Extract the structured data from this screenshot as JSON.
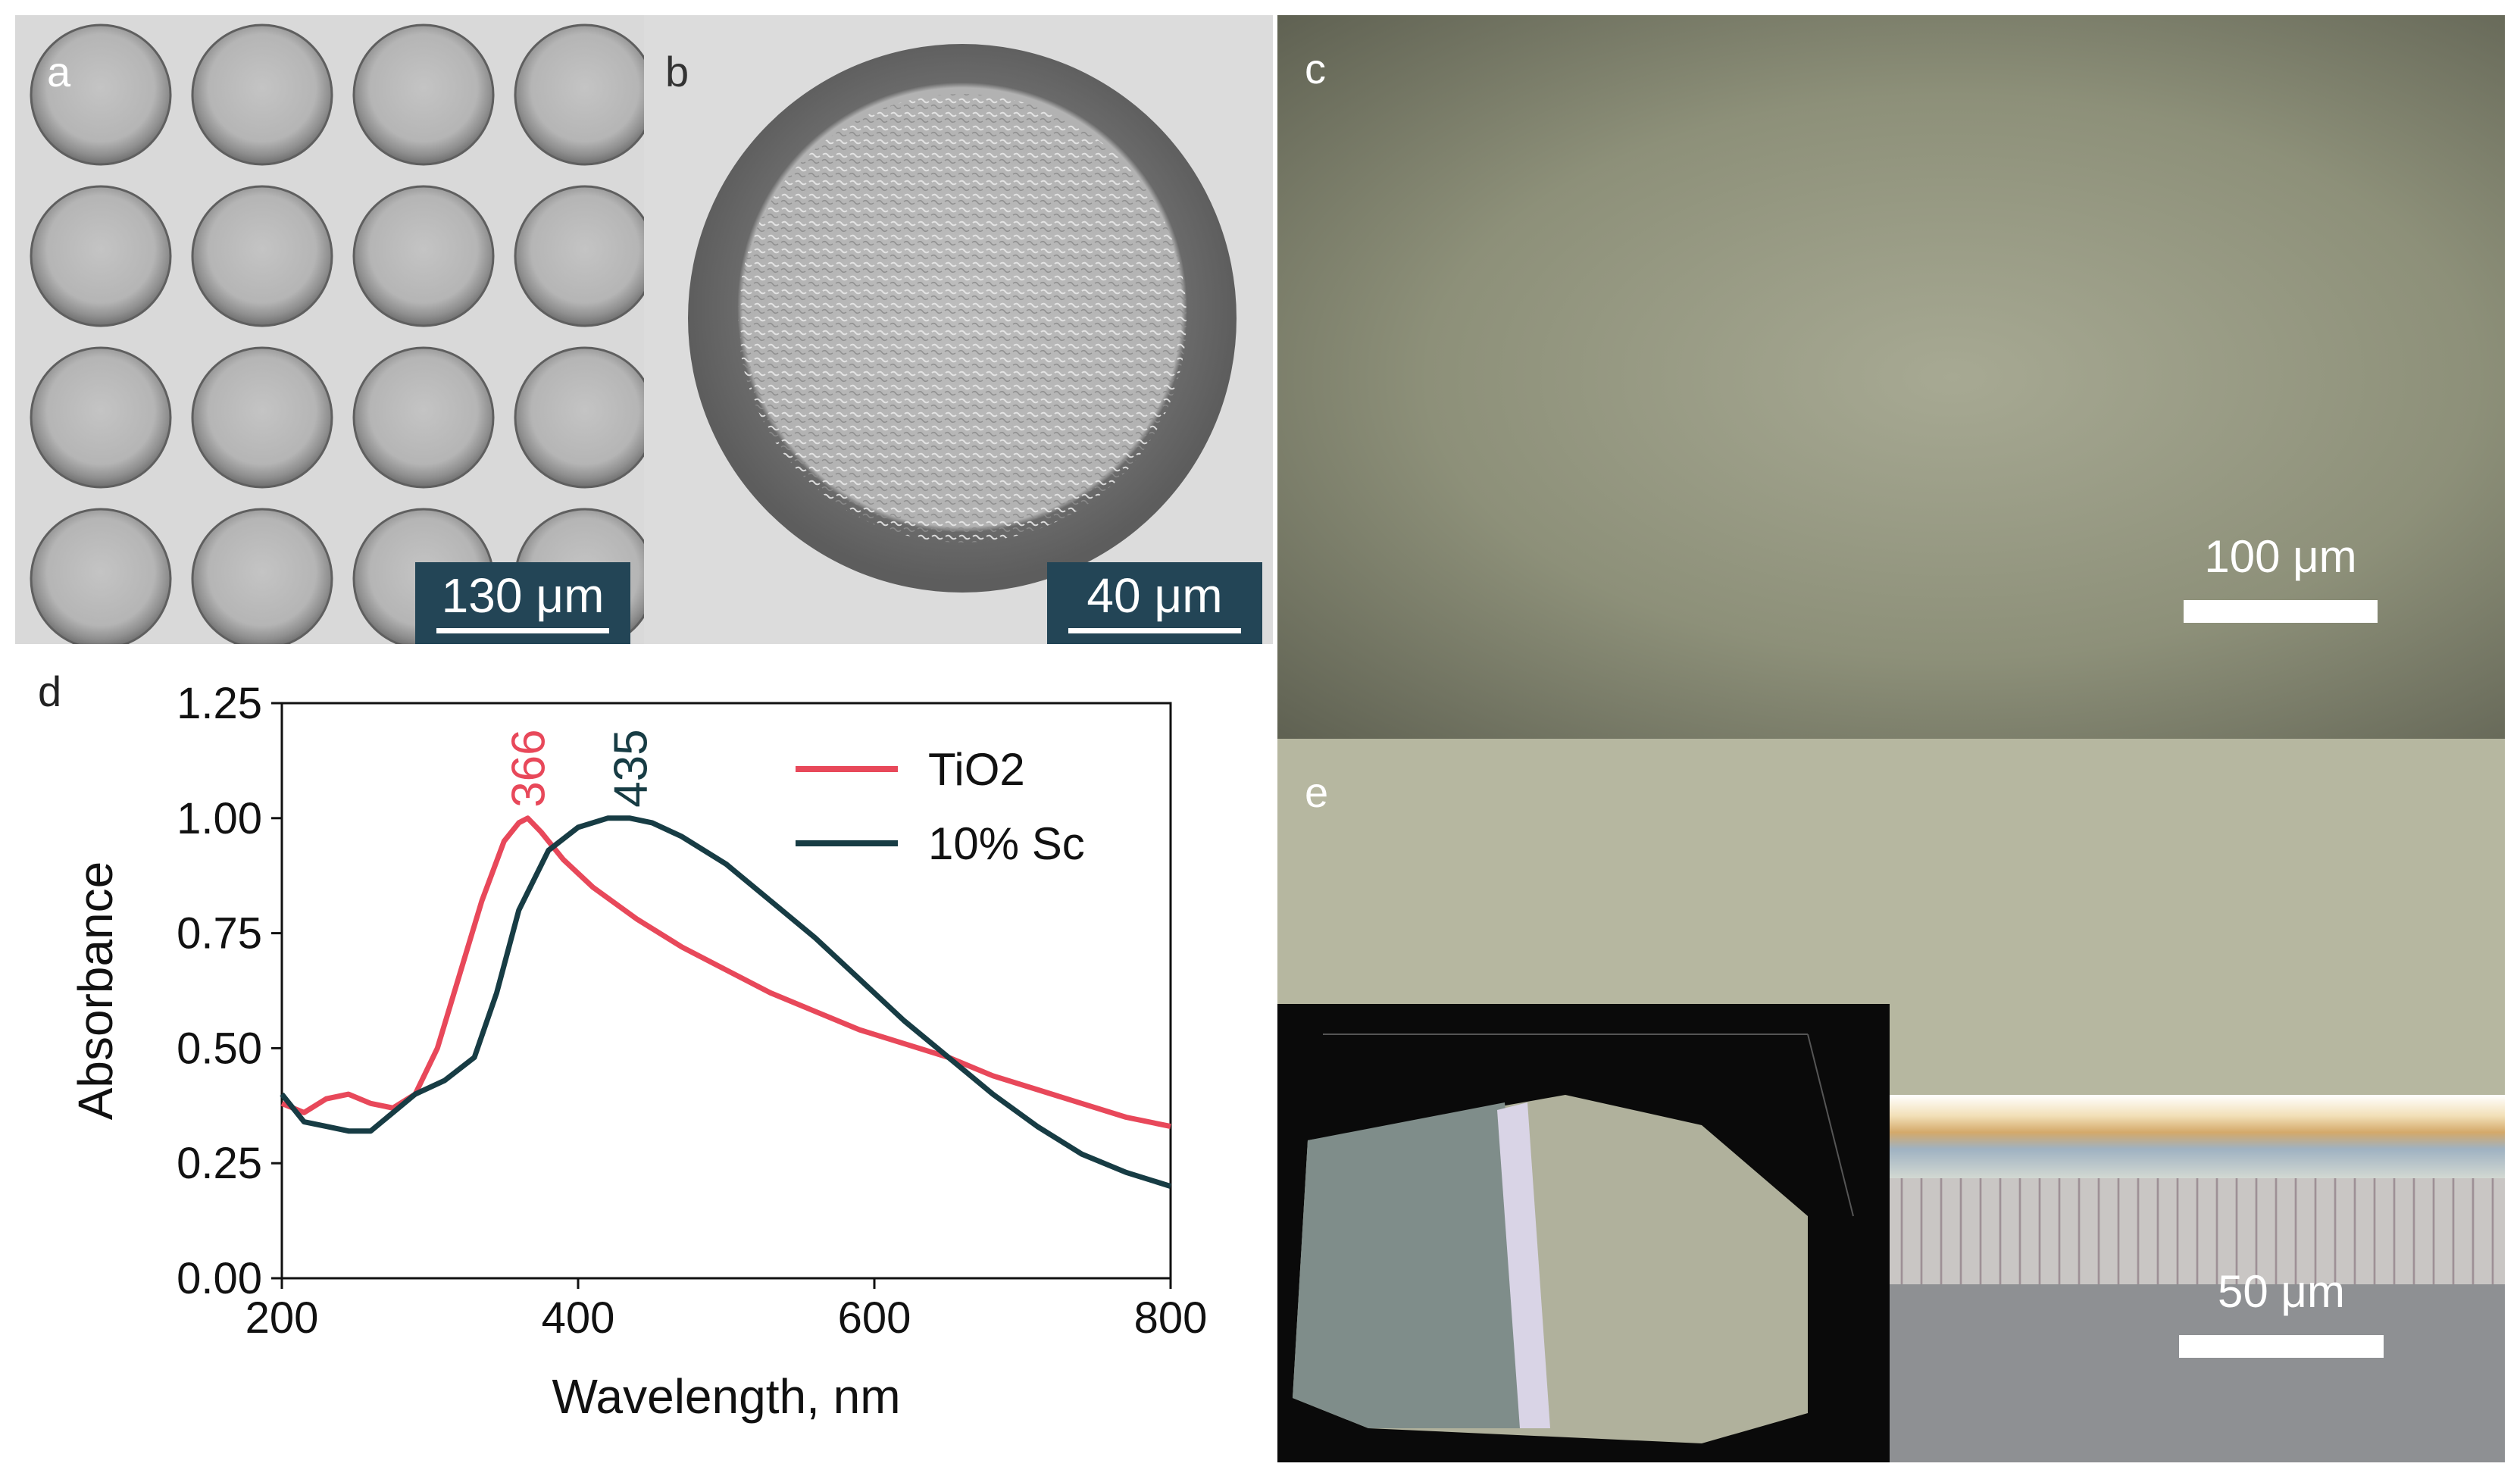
{
  "panels": {
    "a": {
      "letter": "a",
      "scale_label": "130 μm"
    },
    "b": {
      "letter": "b",
      "scale_label": "40 μm"
    },
    "c": {
      "letter": "c",
      "scale_label": "100 μm"
    },
    "d": {
      "letter": "d"
    },
    "e": {
      "letter": "e",
      "scale_label": "50 μm"
    }
  },
  "colors": {
    "tio2": "#e8485a",
    "sc": "#173c44",
    "sem_bg": "#d8d8d8",
    "optical_c": "#8d9079",
    "optical_e": "#b6b7a0"
  },
  "chart_data": {
    "type": "line",
    "title": "",
    "xlabel": "Wavelength, nm",
    "ylabel": "Absorbance",
    "xlim": [
      200,
      800
    ],
    "ylim": [
      0,
      1.25
    ],
    "xticks": [
      200,
      400,
      600,
      800
    ],
    "yticks": [
      "0.00",
      "0.25",
      "0.50",
      "0.75",
      "1.00",
      "1.25"
    ],
    "legend_position": "top-right",
    "series": [
      {
        "name": "TiO2",
        "color": "#e8485a",
        "peak_label": "366",
        "x": [
          200,
          215,
          230,
          245,
          260,
          275,
          290,
          305,
          320,
          335,
          350,
          360,
          366,
          375,
          390,
          410,
          440,
          470,
          500,
          530,
          560,
          590,
          620,
          650,
          680,
          710,
          740,
          770,
          800
        ],
        "y": [
          0.38,
          0.36,
          0.39,
          0.4,
          0.38,
          0.37,
          0.4,
          0.5,
          0.66,
          0.82,
          0.95,
          0.99,
          1.0,
          0.97,
          0.91,
          0.85,
          0.78,
          0.72,
          0.67,
          0.62,
          0.58,
          0.54,
          0.51,
          0.48,
          0.44,
          0.41,
          0.38,
          0.35,
          0.33
        ]
      },
      {
        "name": "10% Sc",
        "color": "#173c44",
        "peak_label": "435",
        "x": [
          200,
          215,
          230,
          245,
          260,
          275,
          290,
          310,
          330,
          345,
          360,
          380,
          400,
          420,
          435,
          450,
          470,
          500,
          530,
          560,
          590,
          620,
          650,
          680,
          710,
          740,
          770,
          800
        ],
        "y": [
          0.4,
          0.34,
          0.33,
          0.32,
          0.32,
          0.36,
          0.4,
          0.43,
          0.48,
          0.62,
          0.8,
          0.93,
          0.98,
          1.0,
          1.0,
          0.99,
          0.96,
          0.9,
          0.82,
          0.74,
          0.65,
          0.56,
          0.48,
          0.4,
          0.33,
          0.27,
          0.23,
          0.2
        ]
      }
    ]
  }
}
